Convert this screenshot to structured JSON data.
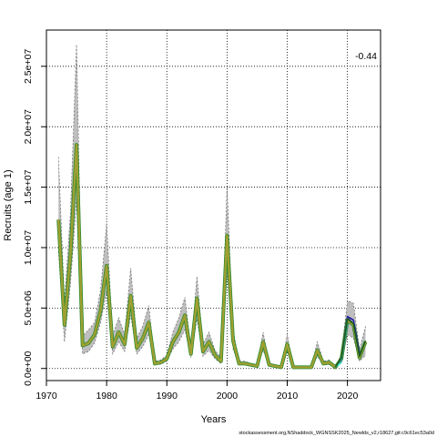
{
  "chart_data": {
    "type": "line",
    "title": "",
    "xlabel": "Years",
    "ylabel": "Recruits (age 1)",
    "annotation": "-0.44",
    "footer": "stockassessment.org,NShaddock_WGNSSK2025_Newlds_v2,r18627,git:c9c61ec53a0d",
    "xlim": [
      1970,
      2025.5
    ],
    "ylim": [
      -1000000,
      28000000
    ],
    "xticks": [
      1970,
      1980,
      1990,
      2000,
      2010,
      2020
    ],
    "yticks": [
      0,
      5000000,
      10000000,
      15000000,
      20000000,
      25000000
    ],
    "ytick_labels": [
      "0.0e+00",
      "5.0e+06",
      "1.0e+07",
      "1.5e+07",
      "2.0e+07",
      "2.5e+07"
    ],
    "grid": true,
    "colors": {
      "band": "#bebebe",
      "main": "#a0a032",
      "main_outline": "#2e8b2e",
      "ci_line": "#555555",
      "retro": [
        "#1a1aa0",
        "#483d8b",
        "#2e9a9a",
        "#40e0d0",
        "#1b5e20",
        "#000000"
      ]
    },
    "series": [
      {
        "name": "",
        "x": [
          1972,
          1973,
          1974,
          1975,
          1976,
          1977,
          1978,
          1979,
          1980,
          1981,
          1982,
          1983,
          1984,
          1985,
          1986,
          1987,
          1988,
          1989,
          1990,
          1991,
          1992,
          1993,
          1994,
          1995,
          1996,
          1997,
          1998,
          1999,
          2000,
          2001,
          2002,
          2003,
          2004,
          2005,
          2006,
          2007,
          2008,
          2009,
          2010,
          2011,
          2012,
          2013,
          2014,
          2015,
          2016,
          2017,
          2018,
          2019,
          2020,
          2021,
          2022,
          2023
        ],
        "y": [
          12300000,
          3600000,
          9500000,
          18500000,
          1900000,
          2100000,
          2800000,
          4800000,
          8500000,
          1800000,
          3000000,
          2000000,
          6000000,
          1700000,
          2500000,
          3800000,
          400000,
          500000,
          800000,
          2200000,
          3000000,
          4400000,
          1200000,
          5800000,
          1400000,
          2200000,
          1100000,
          600000,
          11000000,
          2300000,
          400000,
          400000,
          300000,
          200000,
          2200000,
          300000,
          200000,
          100000,
          2000000,
          100000,
          100000,
          100000,
          100000,
          1500000,
          400000,
          500000,
          100000,
          800000,
          4000000,
          3600000,
          900000,
          2200000
        ],
        "lower": [
          9700000,
          2200000,
          7000000,
          14000000,
          1200000,
          1400000,
          2100000,
          3800000,
          6400000,
          1200000,
          2200000,
          1400000,
          4400000,
          1200000,
          1800000,
          2800000,
          300000,
          350000,
          600000,
          1600000,
          2200000,
          3200000,
          900000,
          4100000,
          1000000,
          1500000,
          800000,
          400000,
          8000000,
          1600000,
          300000,
          300000,
          200000,
          150000,
          1500000,
          200000,
          150000,
          50000,
          1400000,
          50000,
          50000,
          50000,
          50000,
          1000000,
          300000,
          300000,
          50000,
          500000,
          2800000,
          2500000,
          600000,
          1100000
        ],
        "upper": [
          17500000,
          5500000,
          13000000,
          26800000,
          2700000,
          3200000,
          3800000,
          6500000,
          12000000,
          2700000,
          4200000,
          2800000,
          8300000,
          2500000,
          3500000,
          5200000,
          600000,
          700000,
          1100000,
          3000000,
          4200000,
          5900000,
          1700000,
          7600000,
          2000000,
          3000000,
          1500000,
          900000,
          15000000,
          3200000,
          600000,
          600000,
          400000,
          300000,
          3000000,
          400000,
          300000,
          150000,
          2800000,
          150000,
          150000,
          150000,
          150000,
          2200000,
          600000,
          700000,
          150000,
          1200000,
          5600000,
          5400000,
          1600000,
          3500000
        ]
      }
    ],
    "retro_peels": [
      {
        "x": [
          2018,
          2019,
          2020,
          2021,
          2022
        ],
        "y": [
          100000,
          700000,
          4300000,
          4000000,
          1200000
        ]
      },
      {
        "x": [
          2018,
          2019,
          2020,
          2021
        ],
        "y": [
          100000,
          800000,
          4200000,
          3700000
        ]
      },
      {
        "x": [
          2018,
          2019,
          2020
        ],
        "y": [
          100000,
          700000,
          3700000
        ]
      },
      {
        "x": [
          2018,
          2019
        ],
        "y": [
          100000,
          500000
        ]
      },
      {
        "x": [
          2018,
          2019,
          2020,
          2021,
          2022,
          2023
        ],
        "y": [
          100000,
          900000,
          4100000,
          3700000,
          1000000,
          2300000
        ]
      }
    ]
  }
}
